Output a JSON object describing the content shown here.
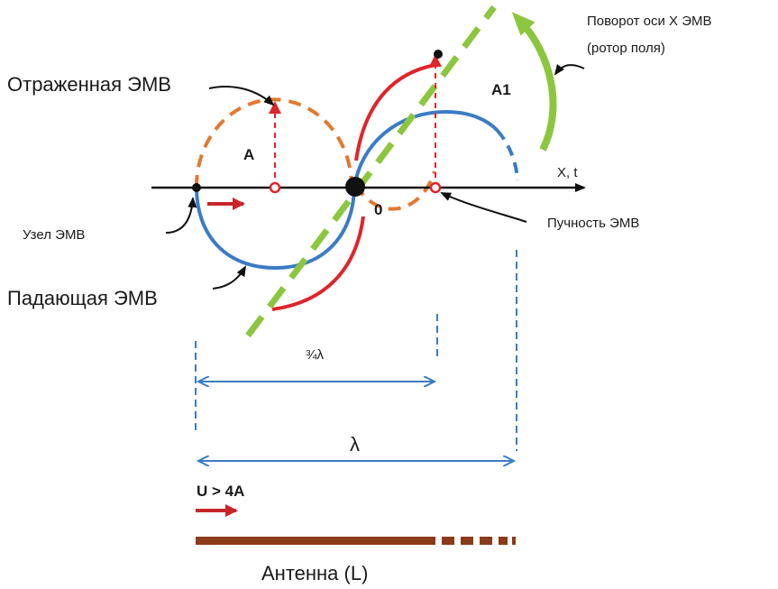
{
  "labels": {
    "rotation_title": "Поворот оси X ЭМВ",
    "rotation_subtitle": "(ротор поля)",
    "reflected_wave": "Отраженная ЭМВ",
    "incident_wave": "Падающая ЭМВ",
    "node": "Узел ЭМВ",
    "antinode": "Пучность ЭМВ",
    "amplitude_a": "A",
    "amplitude_a1": "A1",
    "axis_label": "X, t",
    "origin": "0",
    "three_quarter_lambda": "¾λ",
    "lambda": "λ",
    "velocity": "U > 4A",
    "antenna": "Антенна (L)"
  },
  "colors": {
    "incident": "#3a7cc4",
    "reflected": "#e3782f",
    "rotated": "#e0242a",
    "axis_rotation": "#8cc63f",
    "dimension": "#3a7cc4",
    "antenna": "#8b3a1a",
    "arrow": "#c8262b",
    "axis": "#111111"
  }
}
